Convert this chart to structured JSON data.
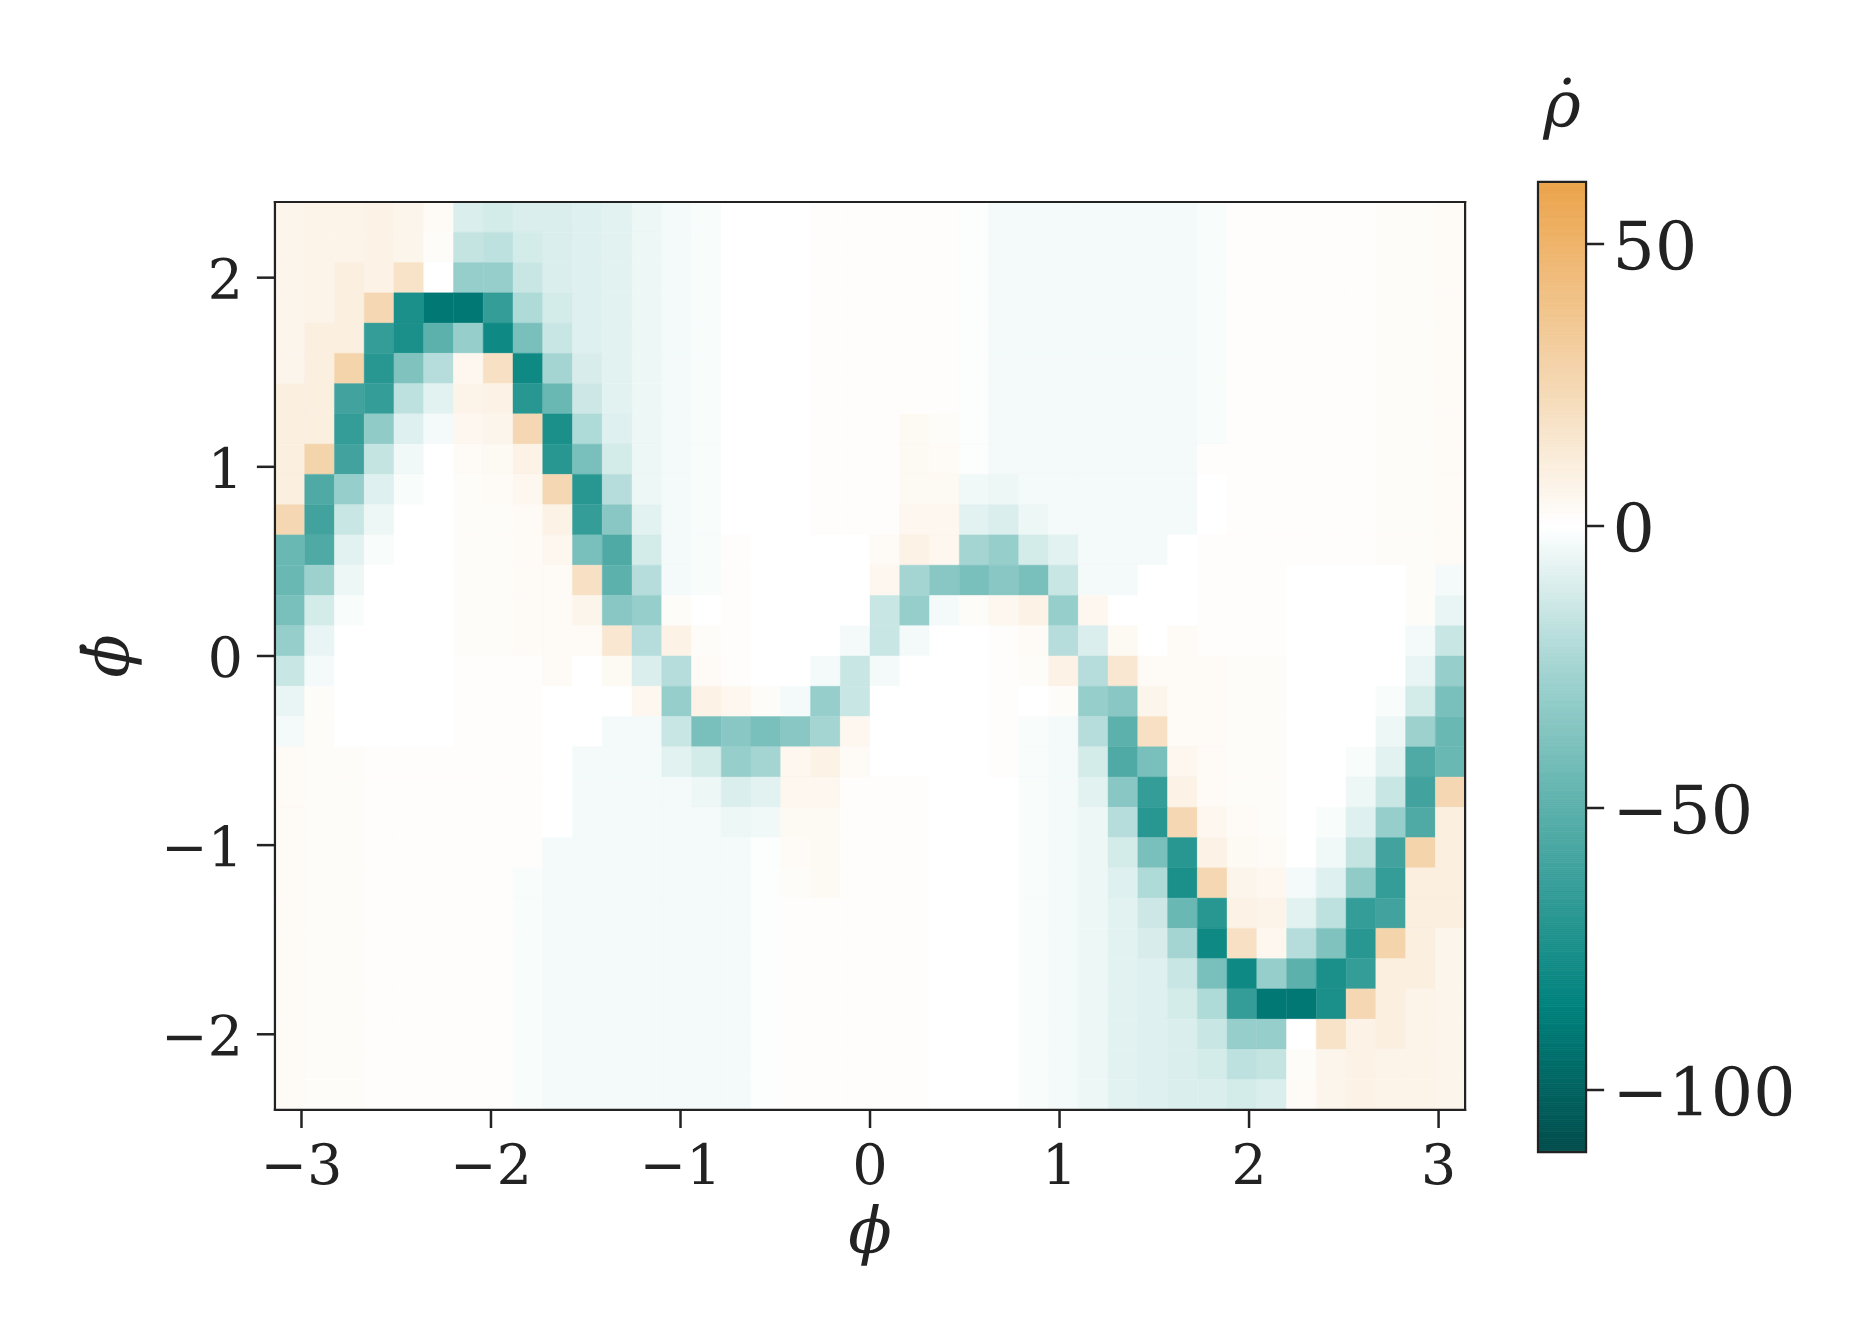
{
  "chart_data": {
    "type": "heatmap",
    "xlabel": "ϕ",
    "ylabel": "ϕ̇",
    "clabel": "ρ̇",
    "xlim": [
      -3.14,
      3.14
    ],
    "ylim": [
      -2.4,
      2.4
    ],
    "xticks": [
      -3,
      -2,
      -1,
      0,
      1,
      2,
      3
    ],
    "yticks": [
      -2,
      -1,
      0,
      1,
      2
    ],
    "clim": [
      -111,
      61
    ],
    "cticks": [
      -100,
      -50,
      0,
      50
    ],
    "cells": [
      [
        6,
        7,
        7,
        8,
        6,
        3,
        -10,
        -12,
        -10,
        -10,
        -9,
        -8,
        -5,
        -3,
        -2,
        0,
        0,
        0,
        1,
        1,
        1,
        1,
        1,
        -1,
        -3,
        -3,
        -3,
        -3,
        -3,
        -3,
        -3,
        -2,
        1,
        1,
        1,
        1,
        1,
        2,
        2,
        3
      ],
      [
        6,
        7,
        7,
        8,
        6,
        2,
        -16,
        -18,
        -12,
        -10,
        -9,
        -8,
        -5,
        -3,
        -2,
        0,
        0,
        0,
        1,
        1,
        1,
        1,
        1,
        -1,
        -3,
        -3,
        -3,
        -3,
        -3,
        -3,
        -3,
        -2,
        1,
        1,
        1,
        1,
        1,
        2,
        2,
        3
      ],
      [
        6,
        7,
        10,
        8,
        18,
        0,
        -30,
        -30,
        -15,
        -10,
        -9,
        -8,
        -5,
        -3,
        -2,
        0,
        0,
        0,
        1,
        1,
        1,
        1,
        1,
        -1,
        -3,
        -3,
        -3,
        -3,
        -3,
        -3,
        -3,
        -2,
        1,
        1,
        1,
        1,
        1,
        2,
        2,
        3
      ],
      [
        6,
        7,
        10,
        25,
        -75,
        -90,
        -90,
        -65,
        -22,
        -12,
        -9,
        -8,
        -5,
        -3,
        -2,
        0,
        0,
        0,
        1,
        1,
        1,
        1,
        1,
        -1,
        -3,
        -3,
        -3,
        -3,
        -3,
        -3,
        -3,
        -2,
        1,
        1,
        1,
        1,
        1,
        2,
        2,
        3
      ],
      [
        6,
        10,
        10,
        -65,
        -75,
        -50,
        -30,
        -80,
        -40,
        -15,
        -9,
        -8,
        -5,
        -3,
        -2,
        0,
        0,
        0,
        1,
        1,
        1,
        1,
        1,
        -1,
        -3,
        -3,
        -3,
        -3,
        -3,
        -3,
        -3,
        -2,
        1,
        1,
        1,
        1,
        1,
        2,
        2,
        3
      ],
      [
        6,
        10,
        28,
        -70,
        -38,
        -20,
        5,
        20,
        -80,
        -25,
        -11,
        -8,
        -5,
        -3,
        -2,
        0,
        0,
        0,
        1,
        1,
        1,
        1,
        1,
        -1,
        -3,
        -3,
        -3,
        -3,
        -3,
        -3,
        -3,
        -2,
        1,
        1,
        1,
        1,
        1,
        2,
        2,
        3
      ],
      [
        10,
        10,
        -60,
        -65,
        -18,
        -8,
        7,
        8,
        -70,
        -45,
        -14,
        -8,
        -5,
        -3,
        -2,
        0,
        0,
        0,
        1,
        1,
        1,
        1,
        1,
        -1,
        -3,
        -3,
        -3,
        -3,
        -3,
        -3,
        -3,
        -2,
        1,
        1,
        1,
        1,
        1,
        2,
        2,
        3
      ],
      [
        10,
        10,
        -65,
        -32,
        -9,
        -3,
        5,
        6,
        25,
        -75,
        -22,
        -9,
        -5,
        -3,
        -2,
        0,
        0,
        0,
        1,
        1,
        1,
        4,
        2,
        -1,
        -3,
        -3,
        -3,
        -3,
        -3,
        -3,
        -3,
        -2,
        1,
        1,
        1,
        1,
        1,
        2,
        2,
        3
      ],
      [
        10,
        28,
        -60,
        -16,
        -4,
        0,
        3,
        4,
        8,
        -70,
        -40,
        -12,
        -5,
        -3,
        -2,
        0,
        0,
        0,
        1,
        1,
        1,
        4,
        3,
        -1,
        -3,
        -3,
        -3,
        -3,
        -3,
        -3,
        -3,
        1,
        1,
        1,
        1,
        1,
        1,
        2,
        2,
        3
      ],
      [
        10,
        -55,
        -30,
        -9,
        -2,
        0,
        2,
        3,
        5,
        25,
        -70,
        -20,
        -5,
        -3,
        -2,
        0,
        0,
        0,
        1,
        1,
        1,
        4,
        4,
        -4,
        -5,
        -3,
        -3,
        -3,
        -3,
        -3,
        -3,
        0,
        1,
        1,
        1,
        1,
        1,
        2,
        2,
        3
      ],
      [
        25,
        -60,
        -15,
        -5,
        0,
        0,
        2,
        2,
        3,
        8,
        -65,
        -35,
        -8,
        -3,
        -2,
        0,
        0,
        0,
        1,
        1,
        1,
        5,
        5,
        -8,
        -10,
        -5,
        -3,
        -3,
        -3,
        -3,
        -3,
        0,
        1,
        1,
        1,
        1,
        1,
        2,
        2,
        3
      ],
      [
        -45,
        -55,
        -8,
        -2,
        0,
        0,
        2,
        2,
        3,
        5,
        -40,
        -55,
        -12,
        -3,
        -2,
        1,
        0,
        0,
        0,
        0,
        3,
        8,
        5,
        -25,
        -30,
        -12,
        -8,
        -3,
        -3,
        -3,
        0,
        1,
        1,
        1,
        1,
        1,
        1,
        2,
        2,
        3
      ],
      [
        -45,
        -28,
        -5,
        0,
        0,
        0,
        2,
        2,
        3,
        3,
        20,
        -50,
        -20,
        -3,
        -2,
        1,
        0,
        0,
        0,
        0,
        5,
        -25,
        -35,
        -40,
        -35,
        -40,
        -15,
        -3,
        -3,
        0,
        0,
        1,
        1,
        1,
        0,
        0,
        0,
        0,
        2,
        -3
      ],
      [
        -40,
        -12,
        -2,
        0,
        0,
        0,
        2,
        2,
        3,
        3,
        6,
        -35,
        -30,
        2,
        0,
        1,
        0,
        0,
        0,
        0,
        -15,
        -30,
        -3,
        2,
        5,
        8,
        -30,
        5,
        0,
        0,
        0,
        1,
        1,
        1,
        0,
        0,
        0,
        0,
        2,
        -6
      ],
      [
        -30,
        -6,
        0,
        0,
        0,
        0,
        2,
        2,
        3,
        3,
        3,
        15,
        -20,
        8,
        2,
        1,
        0,
        0,
        0,
        -3,
        -15,
        -3,
        0,
        0,
        1,
        3,
        -20,
        -10,
        4,
        0,
        3,
        1,
        1,
        1,
        0,
        0,
        0,
        0,
        -3,
        -15
      ],
      [
        -15,
        -3,
        0,
        0,
        0,
        0,
        1,
        1,
        1,
        3,
        0,
        4,
        -10,
        -20,
        3,
        1,
        0,
        0,
        -3,
        -15,
        -3,
        0,
        0,
        0,
        1,
        2,
        8,
        -20,
        15,
        3,
        3,
        3,
        2,
        2,
        0,
        0,
        0,
        0,
        -6,
        -30
      ],
      [
        -6,
        2,
        0,
        0,
        0,
        0,
        1,
        1,
        1,
        0,
        0,
        0,
        5,
        -30,
        8,
        5,
        2,
        -3,
        -30,
        -15,
        0,
        0,
        0,
        0,
        1,
        0,
        2,
        -30,
        -35,
        6,
        3,
        3,
        2,
        2,
        0,
        0,
        0,
        -2,
        -12,
        -40
      ],
      [
        -3,
        2,
        0,
        0,
        0,
        0,
        1,
        1,
        1,
        0,
        0,
        -3,
        -3,
        -15,
        -40,
        -35,
        -40,
        -35,
        -25,
        5,
        0,
        0,
        0,
        0,
        1,
        -2,
        -3,
        -20,
        -50,
        20,
        3,
        3,
        2,
        2,
        0,
        0,
        0,
        -5,
        -28,
        -45
      ],
      [
        3,
        2,
        2,
        1,
        1,
        1,
        1,
        1,
        1,
        0,
        -3,
        -3,
        -3,
        -8,
        -12,
        -30,
        -25,
        5,
        8,
        3,
        0,
        0,
        0,
        0,
        1,
        -2,
        -3,
        -12,
        -55,
        -40,
        5,
        3,
        2,
        2,
        0,
        0,
        -2,
        -8,
        -55,
        -45
      ],
      [
        3,
        2,
        2,
        1,
        1,
        1,
        1,
        1,
        1,
        0,
        -3,
        -3,
        -3,
        -3,
        -5,
        -10,
        -8,
        5,
        5,
        1,
        1,
        1,
        0,
        0,
        0,
        -2,
        -3,
        -8,
        -35,
        -65,
        8,
        3,
        2,
        2,
        0,
        0,
        -5,
        -15,
        -60,
        25
      ],
      [
        3,
        2,
        2,
        1,
        1,
        1,
        1,
        1,
        1,
        0,
        -3,
        -3,
        -3,
        -3,
        -3,
        -5,
        -4,
        4,
        4,
        1,
        1,
        1,
        0,
        0,
        0,
        -2,
        -3,
        -5,
        -20,
        -70,
        25,
        5,
        3,
        2,
        0,
        -2,
        -9,
        -30,
        -55,
        10
      ],
      [
        3,
        2,
        2,
        1,
        1,
        1,
        1,
        1,
        1,
        -3,
        -3,
        -3,
        -3,
        -3,
        -3,
        -3,
        -1,
        3,
        4,
        1,
        1,
        1,
        0,
        0,
        0,
        -2,
        -3,
        -5,
        -12,
        -40,
        -70,
        8,
        4,
        3,
        0,
        -4,
        -16,
        -60,
        28,
        10
      ],
      [
        3,
        2,
        2,
        1,
        1,
        1,
        1,
        1,
        -2,
        -3,
        -3,
        -3,
        -3,
        -3,
        -3,
        -3,
        -1,
        2,
        4,
        1,
        1,
        1,
        0,
        0,
        0,
        -2,
        -3,
        -5,
        -9,
        -22,
        -75,
        25,
        6,
        5,
        -3,
        -9,
        -32,
        -65,
        10,
        10
      ],
      [
        3,
        2,
        2,
        1,
        1,
        1,
        1,
        1,
        -2,
        -3,
        -3,
        -3,
        -3,
        -3,
        -3,
        -3,
        -1,
        1,
        1,
        1,
        1,
        1,
        0,
        0,
        0,
        -2,
        -3,
        -5,
        -8,
        -14,
        -45,
        -70,
        8,
        7,
        -8,
        -18,
        -65,
        -60,
        10,
        10
      ],
      [
        3,
        2,
        2,
        1,
        1,
        1,
        1,
        1,
        -2,
        -3,
        -3,
        -3,
        -3,
        -3,
        -3,
        -3,
        -1,
        1,
        1,
        1,
        1,
        1,
        0,
        0,
        0,
        -2,
        -3,
        -5,
        -8,
        -11,
        -25,
        -80,
        20,
        5,
        -20,
        -38,
        -70,
        28,
        10,
        6
      ],
      [
        3,
        2,
        2,
        1,
        1,
        1,
        1,
        1,
        -2,
        -3,
        -3,
        -3,
        -3,
        -3,
        -3,
        -3,
        -1,
        1,
        1,
        1,
        1,
        1,
        0,
        0,
        0,
        -2,
        -3,
        -5,
        -8,
        -9,
        -15,
        -40,
        -80,
        -30,
        -50,
        -75,
        -65,
        10,
        10,
        6
      ],
      [
        3,
        2,
        2,
        1,
        1,
        1,
        1,
        1,
        -2,
        -3,
        -3,
        -3,
        -3,
        -3,
        -3,
        -3,
        -1,
        1,
        1,
        1,
        1,
        1,
        0,
        0,
        0,
        -2,
        -3,
        -5,
        -8,
        -9,
        -12,
        -22,
        -65,
        -90,
        -90,
        -75,
        25,
        10,
        7,
        6
      ],
      [
        3,
        2,
        2,
        1,
        1,
        1,
        1,
        1,
        -2,
        -3,
        -3,
        -3,
        -3,
        -3,
        -3,
        -3,
        -1,
        1,
        1,
        1,
        1,
        1,
        0,
        0,
        0,
        -2,
        -3,
        -5,
        -8,
        -9,
        -10,
        -15,
        -30,
        -30,
        0,
        18,
        8,
        10,
        7,
        6
      ],
      [
        3,
        2,
        2,
        1,
        1,
        1,
        1,
        1,
        -2,
        -3,
        -3,
        -3,
        -3,
        -3,
        -3,
        -3,
        -1,
        1,
        1,
        1,
        1,
        1,
        0,
        0,
        0,
        -2,
        -3,
        -5,
        -8,
        -9,
        -10,
        -12,
        -18,
        -16,
        2,
        6,
        8,
        7,
        7,
        6
      ],
      [
        3,
        2,
        2,
        1,
        1,
        1,
        1,
        1,
        -2,
        -3,
        -3,
        -3,
        -3,
        -3,
        -3,
        -3,
        -1,
        1,
        1,
        1,
        1,
        1,
        0,
        0,
        0,
        -2,
        -3,
        -5,
        -8,
        -9,
        -10,
        -10,
        -12,
        -10,
        3,
        6,
        8,
        7,
        7,
        6
      ]
    ]
  }
}
